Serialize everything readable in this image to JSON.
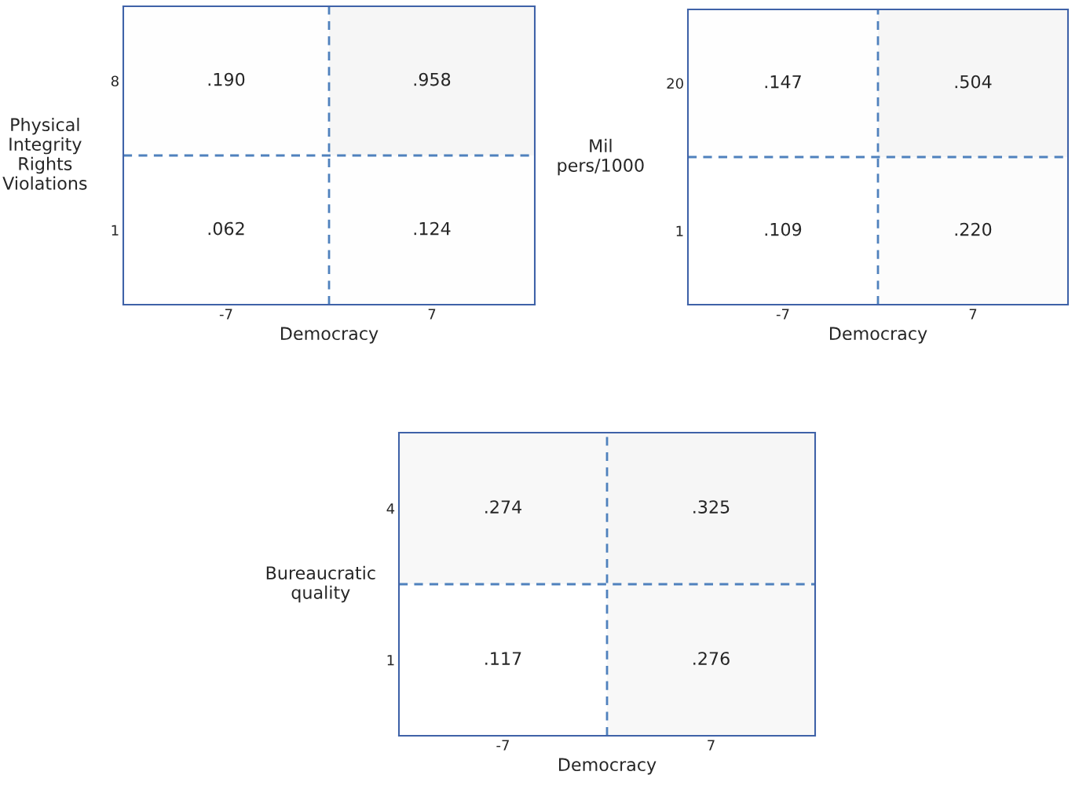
{
  "chart_data": [
    {
      "type": "heatmap",
      "xlabel": "Democracy",
      "ylabel": "Physical\nIntegrity\nRights\nViolations",
      "categories": [
        "-7",
        "7"
      ],
      "y_categories": [
        "8",
        "1"
      ],
      "cells": [
        [
          0.19,
          0.958
        ],
        [
          0.062,
          0.124
        ]
      ],
      "cell_labels": [
        [
          ".190",
          ".958"
        ],
        [
          ".062",
          ".124"
        ]
      ]
    },
    {
      "type": "heatmap",
      "xlabel": "Democracy",
      "ylabel": "Mil\npers/1000",
      "categories": [
        "-7",
        "7"
      ],
      "y_categories": [
        "20",
        "1"
      ],
      "cells": [
        [
          0.147,
          0.504
        ],
        [
          0.109,
          0.22
        ]
      ],
      "cell_labels": [
        [
          ".147",
          ".504"
        ],
        [
          ".109",
          ".220"
        ]
      ]
    },
    {
      "type": "heatmap",
      "xlabel": "Democracy",
      "ylabel": "Bureaucratic\nquality",
      "categories": [
        "-7",
        "7"
      ],
      "y_categories": [
        "4",
        "1"
      ],
      "cells": [
        [
          0.274,
          0.325
        ],
        [
          0.117,
          0.276
        ]
      ],
      "cell_labels": [
        [
          ".274",
          ".325"
        ],
        [
          ".117",
          ".276"
        ]
      ]
    }
  ]
}
